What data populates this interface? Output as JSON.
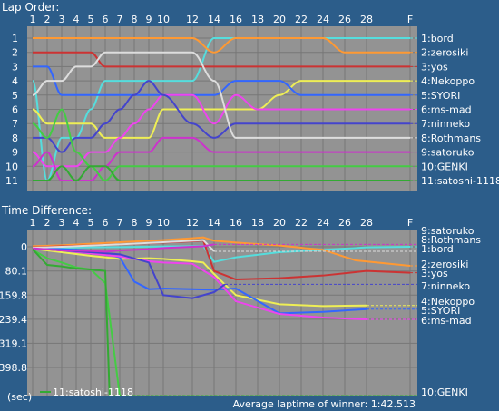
{
  "lap_order": {
    "title": "Lap Order:",
    "x_tick_labels": [
      "1",
      "2",
      "3",
      "4",
      "5",
      "6",
      "7",
      "8",
      "9",
      "10",
      "12",
      "14",
      "16",
      "18",
      "20",
      "22",
      "24",
      "26",
      "28",
      "F"
    ],
    "y_tick_labels": [
      "1",
      "2",
      "3",
      "4",
      "5",
      "6",
      "7",
      "8",
      "9",
      "10",
      "11"
    ],
    "driver_labels": [
      "1:bord",
      "2:zerosiki",
      "3:yos",
      "4:Nekoppo",
      "5:SYORI",
      "6:ms-mad",
      "7:ninneko",
      "8:Rothmans",
      "9:satoruko",
      "10:GENKI",
      "11:satoshi-1118"
    ]
  },
  "time_diff": {
    "title": "Time Difference:",
    "x_tick_labels": [
      "1",
      "2",
      "3",
      "4",
      "5",
      "6",
      "7",
      "8",
      "9",
      "10",
      "12",
      "14",
      "16",
      "18",
      "20",
      "22",
      "24",
      "26",
      "28",
      "F"
    ],
    "y_tick_labels": [
      "0",
      "80.1",
      "159.8",
      "239.4",
      "319.1",
      "398.8"
    ],
    "y_unit": "(sec)",
    "driver_labels": [
      "9:satoruko",
      "8:Rothmans",
      "1:bord",
      "2:zerosiki",
      "3:yos",
      "7:ninneko",
      "4:Nekoppo",
      "5:SYORI",
      "6:ms-mad",
      "10:GENKI"
    ],
    "legend_label": "11:satoshi-1118",
    "footer": "Average laptime of winner: 1:42.513"
  },
  "chart_data": [
    {
      "type": "line",
      "title": "Lap Order:",
      "xlabel": "",
      "ylabel": "",
      "x": [
        1,
        2,
        3,
        4,
        5,
        6,
        7,
        8,
        9,
        10,
        12,
        14,
        16,
        18,
        20,
        22,
        24,
        26,
        28,
        29
      ],
      "x_tick_labels": [
        "1",
        "2",
        "3",
        "4",
        "5",
        "6",
        "7",
        "8",
        "9",
        "10",
        "12",
        "14",
        "16",
        "18",
        "20",
        "22",
        "24",
        "26",
        "28",
        "F"
      ],
      "ylim": [
        11,
        1
      ],
      "grid": true,
      "series": [
        {
          "name": "1:bord",
          "color": "#55dddd",
          "values": [
            4,
            11,
            8,
            8,
            6,
            4,
            4,
            4,
            4,
            4,
            4,
            1,
            1,
            1,
            1,
            1,
            1,
            1,
            1,
            1
          ]
        },
        {
          "name": "2:zerosiki",
          "color": "#ff9933",
          "values": [
            1,
            1,
            1,
            1,
            1,
            1,
            1,
            1,
            1,
            1,
            1,
            2,
            1,
            1,
            1,
            1,
            1,
            2,
            2,
            2
          ]
        },
        {
          "name": "3:yos",
          "color": "#cc3333",
          "values": [
            2,
            2,
            2,
            2,
            2,
            3,
            3,
            3,
            3,
            3,
            3,
            3,
            3,
            3,
            3,
            3,
            3,
            3,
            3,
            3
          ]
        },
        {
          "name": "4:Nekoppo",
          "color": "#eeee55",
          "values": [
            6,
            7,
            7,
            7,
            7,
            8,
            8,
            8,
            8,
            6,
            6,
            6,
            6,
            6,
            5,
            4,
            4,
            4,
            4,
            4
          ]
        },
        {
          "name": "5:SYORI",
          "color": "#3366ff",
          "values": [
            3,
            3,
            5,
            5,
            5,
            5,
            5,
            5,
            5,
            5,
            5,
            5,
            4,
            4,
            4,
            5,
            5,
            5,
            5,
            5
          ]
        },
        {
          "name": "6:ms-mad",
          "color": "#ee44ee",
          "values": [
            9,
            10,
            10,
            10,
            9,
            9,
            8,
            7,
            6,
            5,
            5,
            7,
            5,
            6,
            6,
            6,
            6,
            6,
            6,
            6
          ]
        },
        {
          "name": "7:ninneko",
          "color": "#4444cc",
          "values": [
            8,
            8,
            9,
            8,
            8,
            7,
            6,
            5,
            4,
            5,
            7,
            8,
            7,
            7,
            7,
            7,
            7,
            7,
            7,
            7
          ]
        },
        {
          "name": "8:Rothmans",
          "color": "#dddddd",
          "values": [
            5,
            4,
            4,
            3,
            3,
            2,
            2,
            2,
            2,
            2,
            2,
            4,
            8,
            8,
            8,
            8,
            8,
            8,
            8,
            8
          ]
        },
        {
          "name": "9:satoruko",
          "color": "#cc33cc",
          "values": [
            10,
            9,
            11,
            11,
            11,
            10,
            9,
            9,
            9,
            8,
            8,
            9,
            9,
            9,
            9,
            9,
            9,
            9,
            9,
            9
          ]
        },
        {
          "name": "10:GENKI",
          "color": "#44cc44",
          "values": [
            7,
            8,
            6,
            9,
            10,
            11,
            10,
            10,
            10,
            10,
            10,
            10,
            10,
            10,
            10,
            10,
            10,
            10,
            10,
            10
          ]
        },
        {
          "name": "11:satoshi-1118",
          "color": "#33aa33",
          "values": [
            11,
            11,
            10,
            11,
            10,
            10,
            11,
            11,
            11,
            11,
            11,
            11,
            11,
            11,
            11,
            11,
            11,
            11,
            11,
            11
          ]
        }
      ]
    },
    {
      "type": "line",
      "title": "Time Difference:",
      "xlabel": "",
      "ylabel": "(sec)",
      "x": [
        1,
        2,
        3,
        4,
        5,
        6,
        7,
        8,
        9,
        10,
        12,
        14,
        16,
        18,
        20,
        22,
        24,
        26,
        28,
        29
      ],
      "x_tick_labels": [
        "1",
        "2",
        "3",
        "4",
        "5",
        "6",
        "7",
        "8",
        "9",
        "10",
        "12",
        "14",
        "16",
        "18",
        "20",
        "22",
        "24",
        "26",
        "28",
        "F"
      ],
      "y_tick_labels": [
        "0",
        "80.1",
        "159.8",
        "239.4",
        "319.1",
        "398.8"
      ],
      "ylim": [
        -40,
        530
      ],
      "grid": true,
      "legend": {
        "entry": "11:satoshi-1118",
        "color": "#33aa33",
        "position": "bottom-left"
      },
      "series": [
        {
          "name": "1:bord",
          "color": "#55dddd",
          "points": [
            [
              1,
              6
            ],
            [
              3,
              3
            ],
            [
              5,
              2
            ],
            [
              7,
              1
            ],
            [
              10,
              -1
            ],
            [
              12,
              -2
            ],
            [
              13,
              -3
            ],
            [
              14,
              50
            ],
            [
              16,
              35
            ],
            [
              20,
              18
            ],
            [
              24,
              10
            ],
            [
              28,
              2
            ],
            [
              29,
              0
            ]
          ]
        },
        {
          "name": "2:zerosiki",
          "color": "#ff9933",
          "points": [
            [
              1,
              -2
            ],
            [
              3,
              -5
            ],
            [
              5,
              -10
            ],
            [
              7,
              -15
            ],
            [
              10,
              -22
            ],
            [
              12,
              -28
            ],
            [
              13,
              -31
            ],
            [
              14,
              -20
            ],
            [
              16,
              -14
            ],
            [
              20,
              -4
            ],
            [
              24,
              10
            ],
            [
              27,
              45
            ],
            [
              29,
              63
            ]
          ]
        },
        {
          "name": "3:yos",
          "color": "#cc3333",
          "points": [
            [
              1,
              2
            ],
            [
              3,
              -2
            ],
            [
              5,
              -5
            ],
            [
              7,
              -8
            ],
            [
              10,
              -14
            ],
            [
              12,
              -18
            ],
            [
              13,
              -21
            ],
            [
              14,
              80
            ],
            [
              16,
              108
            ],
            [
              20,
              104
            ],
            [
              24,
              95
            ],
            [
              28,
              80
            ],
            [
              29,
              86
            ]
          ]
        },
        {
          "name": "4:Nekoppo",
          "color": "#eeee55",
          "points": [
            [
              1,
              6
            ],
            [
              3,
              18
            ],
            [
              5,
              30
            ],
            [
              7,
              40
            ],
            [
              9,
              38
            ],
            [
              10,
              40
            ],
            [
              12,
              48
            ],
            [
              13,
              52
            ],
            [
              14,
              90
            ],
            [
              16,
              160
            ],
            [
              20,
              190
            ],
            [
              24,
              196
            ],
            [
              28,
              194
            ]
          ]
        },
        {
          "name": "5:SYORI",
          "color": "#3366ff",
          "points": [
            [
              1,
              5
            ],
            [
              3,
              8
            ],
            [
              5,
              12
            ],
            [
              6,
              22
            ],
            [
              7,
              35
            ],
            [
              8,
              115
            ],
            [
              9,
              140
            ],
            [
              10,
              138
            ],
            [
              12,
              140
            ],
            [
              14,
              142
            ],
            [
              16,
              138
            ],
            [
              20,
              220
            ],
            [
              24,
              215
            ],
            [
              28,
              206
            ]
          ]
        },
        {
          "name": "6:ms-mad",
          "color": "#ee44ee",
          "points": [
            [
              1,
              5
            ],
            [
              3,
              12
            ],
            [
              5,
              22
            ],
            [
              7,
              32
            ],
            [
              9,
              48
            ],
            [
              10,
              52
            ],
            [
              12,
              56
            ],
            [
              14,
              100
            ],
            [
              16,
              180
            ],
            [
              20,
              222
            ],
            [
              24,
              234
            ],
            [
              28,
              240
            ]
          ]
        },
        {
          "name": "7:ninneko",
          "color": "#4444cc",
          "points": [
            [
              1,
              5
            ],
            [
              3,
              12
            ],
            [
              5,
              18
            ],
            [
              7,
              25
            ],
            [
              9,
              52
            ],
            [
              10,
              160
            ],
            [
              12,
              170
            ],
            [
              14,
              150
            ],
            [
              15,
              124
            ]
          ]
        },
        {
          "name": "8:Rothmans",
          "color": "#dddddd",
          "points": [
            [
              1,
              3
            ],
            [
              3,
              0
            ],
            [
              5,
              -4
            ],
            [
              7,
              -8
            ],
            [
              10,
              -15
            ],
            [
              12,
              -20
            ],
            [
              13,
              -22
            ],
            [
              14,
              15
            ]
          ]
        },
        {
          "name": "9:satoruko",
          "color": "#cc33cc",
          "points": [
            [
              1,
              5
            ],
            [
              3,
              12
            ],
            [
              5,
              14
            ],
            [
              6,
              16
            ],
            [
              7,
              12
            ],
            [
              8,
              10
            ],
            [
              9,
              8
            ],
            [
              10,
              4
            ],
            [
              12,
              0
            ],
            [
              13,
              -2
            ],
            [
              14,
              -8
            ]
          ]
        },
        {
          "name": "10:GENKI",
          "color": "#44cc44",
          "points": [
            [
              1,
              10
            ],
            [
              2,
              38
            ],
            [
              3,
              52
            ],
            [
              4,
              68
            ],
            [
              5,
              75
            ],
            [
              6,
              120
            ],
            [
              7,
              515
            ]
          ]
        },
        {
          "name": "11:satoshi-1118",
          "color": "#33aa33",
          "points": [
            [
              1,
              8
            ],
            [
              2,
              60
            ],
            [
              3,
              65
            ],
            [
              4,
              72
            ],
            [
              5,
              75
            ],
            [
              6,
              80
            ],
            [
              6.3,
              520
            ]
          ]
        }
      ]
    }
  ]
}
